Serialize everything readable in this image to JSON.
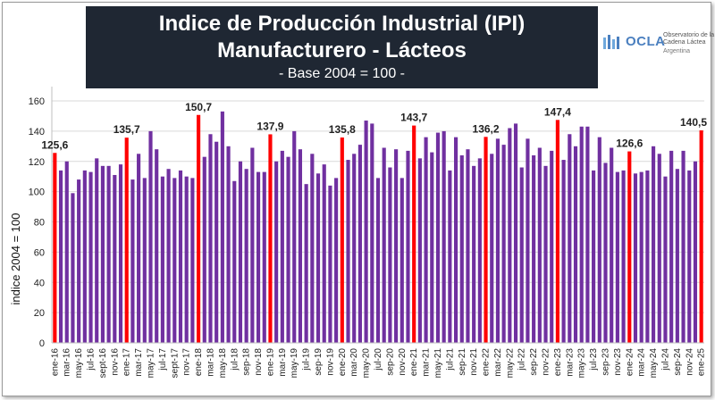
{
  "title": "Indice de Producción Industrial (IPI) Manufacturero - Lácteos",
  "subtitle": "- Base 2004 = 100 -",
  "logo": {
    "name": "OCLA",
    "description": "Observatorio de la Cadena Láctea",
    "country": "Argentina"
  },
  "colors": {
    "bar": "#7030a0",
    "highlight": "#ff0000",
    "title_bg": "#1f2733",
    "gridline": "#d9d9d9"
  },
  "chart_data": {
    "type": "bar",
    "title": "Indice de Producción Industrial (IPI) Manufacturero - Lácteos",
    "subtitle": "- Base 2004 = 100 -",
    "xlabel": "",
    "ylabel": "indice 2004 = 100",
    "ylim": [
      0,
      160
    ],
    "yticks": [
      0,
      20,
      40,
      60,
      80,
      100,
      120,
      140,
      160
    ],
    "grid": true,
    "legend": "none",
    "x_tick_labels": [
      "ene-16",
      "mar-16",
      "may-16",
      "jul-16",
      "sept-16",
      "nov-16",
      "ene-17",
      "mar-17",
      "may-17",
      "jul-17",
      "sept-17",
      "nov-17",
      "ene-18",
      "mar-18",
      "may-18",
      "jul-18",
      "sep-18",
      "nov-18",
      "ene-19",
      "mar-19",
      "may-19",
      "jul-19",
      "sep-19",
      "nov-19",
      "ene-20",
      "mar-20",
      "may-20",
      "jul-20",
      "sep-20",
      "nov-20",
      "ene-21",
      "mar-21",
      "may-21",
      "jul-21",
      "sep-21",
      "nov-21",
      "ene-22",
      "mar-22",
      "may-22",
      "jul-22",
      "sep-22",
      "nov-22",
      "ene-23",
      "mar-23",
      "may-23",
      "jul-23",
      "sep-23",
      "nov-23",
      "ene-24",
      "mar-24",
      "may-24",
      "jul-24",
      "sep-24",
      "nov-24",
      "ene-25"
    ],
    "values": [
      125.6,
      114,
      120,
      99,
      108,
      114,
      113,
      122,
      117,
      117,
      111,
      118,
      135.7,
      108,
      125,
      109,
      140,
      128,
      110,
      115,
      109,
      114,
      110,
      109,
      150.7,
      123,
      138,
      133,
      153,
      130,
      107,
      120,
      115,
      129,
      113,
      113,
      137.9,
      120,
      127,
      123,
      140,
      128,
      105,
      125,
      112,
      118,
      104,
      109,
      135.8,
      121,
      125,
      131,
      147,
      145,
      109,
      129,
      116,
      128,
      109,
      127,
      143.7,
      122,
      136,
      126,
      139,
      140,
      114,
      136,
      124,
      128,
      117,
      122,
      136.2,
      125,
      135,
      131,
      142,
      145,
      116,
      135,
      124,
      129,
      117,
      127,
      147.4,
      121,
      138,
      130,
      143,
      143,
      114,
      136,
      119,
      129,
      113,
      114,
      126.6,
      112,
      113,
      114,
      130,
      125,
      110,
      127,
      115,
      127,
      114,
      120,
      140.5
    ],
    "highlight_indices": [
      0,
      12,
      24,
      36,
      48,
      60,
      72,
      84,
      96,
      108
    ],
    "data_labels": [
      {
        "index": 0,
        "text": "125,6"
      },
      {
        "index": 12,
        "text": "135,7"
      },
      {
        "index": 24,
        "text": "150,7"
      },
      {
        "index": 36,
        "text": "137,9"
      },
      {
        "index": 48,
        "text": "135,8"
      },
      {
        "index": 60,
        "text": "143,7"
      },
      {
        "index": 72,
        "text": "136,2"
      },
      {
        "index": 84,
        "text": "147,4"
      },
      {
        "index": 96,
        "text": "126,6"
      },
      {
        "index": 108,
        "text": "140,5"
      }
    ]
  }
}
